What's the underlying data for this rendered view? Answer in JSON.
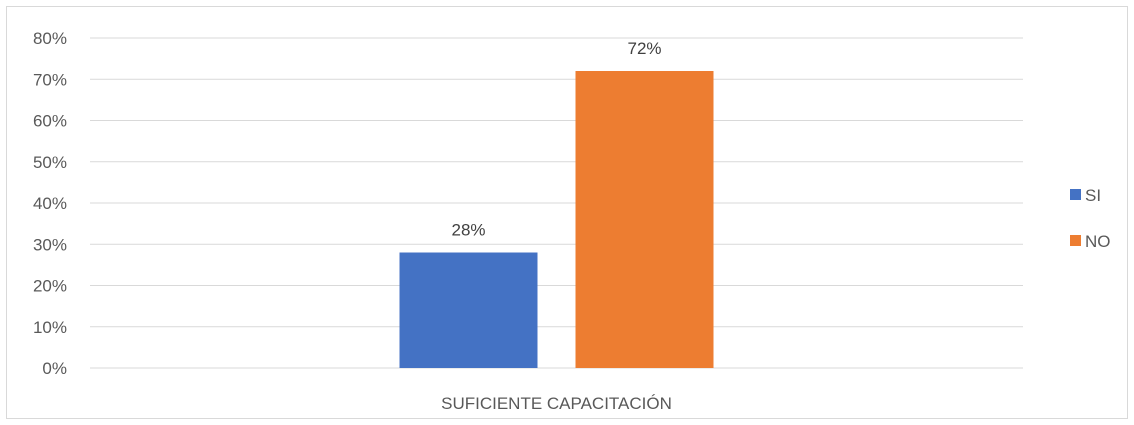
{
  "chart_data": {
    "type": "bar",
    "categories": [
      "SUFICIENTE CAPACITACIÓN"
    ],
    "series": [
      {
        "name": "SI",
        "values": [
          28
        ],
        "color": "#4472C4",
        "data_label": "28%"
      },
      {
        "name": "NO",
        "values": [
          72
        ],
        "color": "#ED7D31",
        "data_label": "72%"
      }
    ],
    "title": "",
    "xlabel": "",
    "ylabel": "",
    "ylim": [
      0,
      80
    ],
    "yticks": [
      "0%",
      "10%",
      "20%",
      "30%",
      "40%",
      "50%",
      "60%",
      "70%",
      "80%"
    ],
    "grid": true,
    "legend_position": "right",
    "gridline_color": "#d9d9d9"
  }
}
